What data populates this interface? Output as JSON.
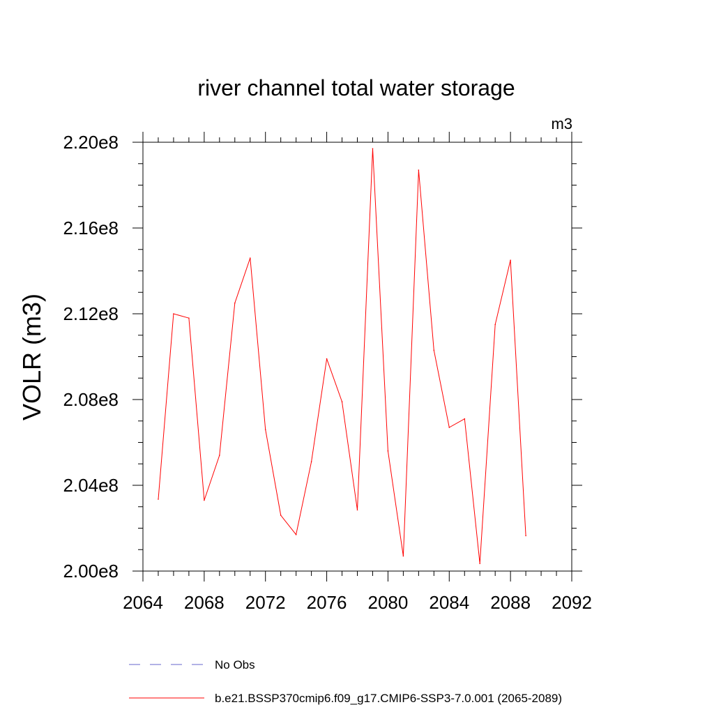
{
  "chart_data": {
    "type": "line",
    "title": "river channel total water storage",
    "units_label": "m3",
    "xlabel": "",
    "ylabel": "VOLR  (m3)",
    "xlim": [
      2064,
      2092
    ],
    "ylim": [
      200000000.0,
      220000000.0
    ],
    "x_ticks": [
      2064,
      2068,
      2072,
      2076,
      2080,
      2084,
      2088,
      2092
    ],
    "x_tick_labels": [
      "2064",
      "2068",
      "2072",
      "2076",
      "2080",
      "2084",
      "2088",
      "2092"
    ],
    "y_ticks": [
      200000000.0,
      204000000.0,
      208000000.0,
      212000000.0,
      216000000.0,
      220000000.0
    ],
    "y_tick_labels": [
      "2.00e8",
      "2.04e8",
      "2.08e8",
      "2.12e8",
      "2.16e8",
      "2.20e8"
    ],
    "grid": false,
    "series": [
      {
        "name": "b.e21.BSSP370cmip6.f09_g17.CMIP6-SSP3-7.0.001 (2065-2089)",
        "color": "#ff0000",
        "x": [
          2065,
          2066,
          2067,
          2068,
          2069,
          2070,
          2071,
          2072,
          2073,
          2074,
          2075,
          2076,
          2077,
          2078,
          2079,
          2080,
          2081,
          2082,
          2083,
          2084,
          2085,
          2086,
          2087,
          2088,
          2089
        ],
        "values": [
          203350000.0,
          212000000.0,
          211800000.0,
          203300000.0,
          205400000.0,
          212500000.0,
          214600000.0,
          206600000.0,
          202600000.0,
          201700000.0,
          205100000.0,
          209900000.0,
          207900000.0,
          202850000.0,
          219700000.0,
          205600000.0,
          200700000.0,
          218700000.0,
          210300000.0,
          206700000.0,
          207100000.0,
          200350000.0,
          211500000.0,
          214500000.0,
          201650000.0
        ]
      }
    ],
    "legend": [
      {
        "label": "No Obs",
        "color": "#6666cc",
        "style": "dashed"
      },
      {
        "label": "b.e21.BSSP370cmip6.f09_g17.CMIP6-SSP3-7.0.001 (2065-2089)",
        "color": "#ff0000",
        "style": "solid"
      }
    ],
    "legend_position": "bottom"
  }
}
